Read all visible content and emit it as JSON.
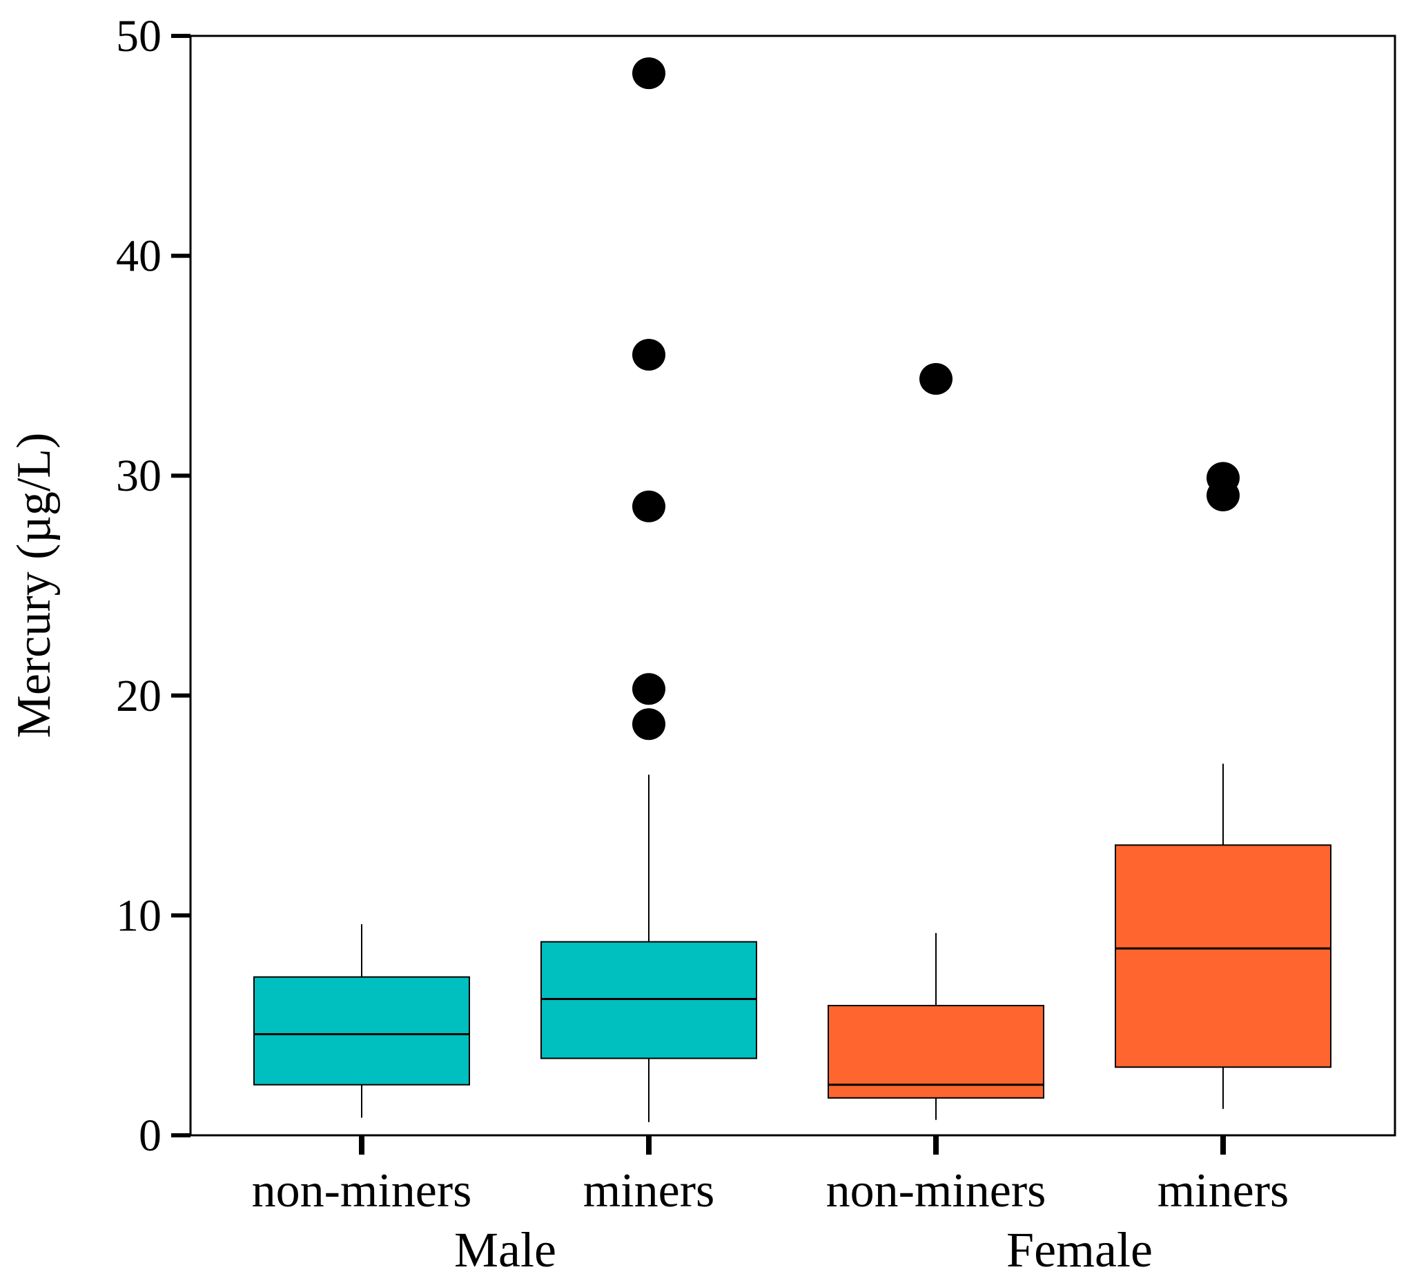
{
  "chart_data": {
    "type": "boxplot",
    "title": "",
    "xlabel": "",
    "ylabel": "Mercury (µg/L)",
    "ylim": [
      0,
      50
    ],
    "yticks": [
      0,
      10,
      20,
      30,
      40,
      50
    ],
    "ytick_labels": [
      "0",
      "10",
      "20",
      "30",
      "40",
      "50"
    ],
    "grid": false,
    "legend": "none",
    "groups": [
      {
        "label": "Male",
        "categories": [
          0,
          1
        ]
      },
      {
        "label": "Female",
        "categories": [
          2,
          3
        ]
      }
    ],
    "categories": [
      "non-miners",
      "miners",
      "non-miners",
      "miners"
    ],
    "series": [
      {
        "name": "Male non-miners",
        "group": "Male",
        "category": "non-miners",
        "color": "#00BFBF",
        "whisker_low": 0.8,
        "q1": 2.3,
        "median": 4.6,
        "q3": 7.2,
        "whisker_high": 9.6,
        "outliers": []
      },
      {
        "name": "Male miners",
        "group": "Male",
        "category": "miners",
        "color": "#00BFBF",
        "whisker_low": 0.6,
        "q1": 3.5,
        "median": 6.2,
        "q3": 8.8,
        "whisker_high": 16.4,
        "outliers": [
          48.3,
          35.5,
          28.6,
          20.3,
          18.7
        ]
      },
      {
        "name": "Female non-miners",
        "group": "Female",
        "category": "non-miners",
        "color": "#FF652F",
        "whisker_low": 0.7,
        "q1": 1.7,
        "median": 2.3,
        "q3": 5.9,
        "whisker_high": 9.2,
        "outliers": [
          34.4
        ]
      },
      {
        "name": "Female miners",
        "group": "Female",
        "category": "miners",
        "color": "#FF652F",
        "whisker_low": 1.2,
        "q1": 3.1,
        "median": 8.5,
        "q3": 13.2,
        "whisker_high": 16.9,
        "outliers": [
          29.9,
          29.1
        ]
      }
    ]
  }
}
